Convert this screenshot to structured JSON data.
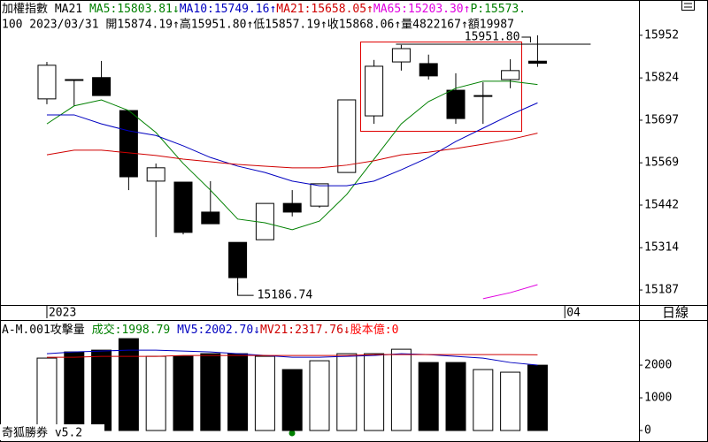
{
  "header": {
    "line1_prefix": "加權指數 MA21 ",
    "line1_suffix": "P:15573.",
    "line2": "100 2023/03/31 開15874.19↑高15951.80↑低15857.19↑收15868.06↑量4822167↑額19987"
  },
  "timeframe": "日線",
  "footer": "奇狐勝券 v5.2",
  "chart_data": [
    {
      "type": "candlestick",
      "x": [
        0,
        1,
        2,
        3,
        4,
        5,
        6,
        7,
        8,
        9,
        10,
        11,
        12,
        13,
        14,
        15,
        16,
        17,
        18
      ],
      "open": [
        15761,
        15819,
        15825,
        15726,
        15514,
        15511,
        15421,
        15330,
        15338,
        15447,
        15439,
        15540,
        15710,
        15872,
        15867,
        15787,
        15769,
        15819,
        15874.19
      ],
      "high": [
        15872,
        15819,
        15875,
        15726,
        15567,
        15511,
        15514,
        15330,
        15447,
        15487,
        15506,
        15758,
        15878,
        15923,
        15894,
        15838,
        15811,
        15880,
        15951.8
      ],
      "low": [
        15745,
        15740,
        15771,
        15487,
        15346,
        15354,
        15386,
        15186.74,
        15338,
        15408,
        15434,
        15540,
        15686,
        15846,
        15819,
        15686,
        15686,
        15793,
        15857.19
      ],
      "close": [
        15862,
        15817,
        15771,
        15527,
        15554,
        15360,
        15386,
        15224,
        15447,
        15421,
        15506,
        15758,
        15859,
        15912,
        15830,
        15702,
        15771,
        15846,
        15868.06
      ],
      "up_color": "#ffffff",
      "down_color": "#000000",
      "series": [
        {
          "label": "MA5:15803.81↓",
          "color": "#008000",
          "values": [
            15686,
            15740,
            15758,
            15726,
            15660,
            15567,
            15487,
            15400,
            15389,
            15368,
            15394,
            15474,
            15580,
            15686,
            15753,
            15793,
            15814,
            15814,
            15804
          ]
        },
        {
          "label": "MA10:15749.16↑",
          "color": "#0000c0",
          "values": [
            15713,
            15713,
            15686,
            15665,
            15651,
            15620,
            15585,
            15559,
            15540,
            15514,
            15500,
            15500,
            15514,
            15548,
            15585,
            15633,
            15673,
            15713,
            15749
          ]
        },
        {
          "label": "MA21:15658.05↑",
          "color": "#d00000",
          "values": [
            15593,
            15607,
            15607,
            15599,
            15591,
            15580,
            15572,
            15564,
            15559,
            15554,
            15554,
            15562,
            15575,
            15593,
            15601,
            15612,
            15625,
            15639,
            15658
          ]
        },
        {
          "label": "MA65:15203.30↑",
          "color": "#e000e0",
          "values": [
            null,
            null,
            null,
            null,
            null,
            null,
            null,
            null,
            null,
            null,
            null,
            null,
            null,
            null,
            null,
            null,
            15161,
            15179,
            15203
          ]
        }
      ],
      "annotations": [
        {
          "label": "15951.80",
          "value": 15951.8,
          "x": 18
        },
        {
          "label": "15186.74",
          "value": 15186.74,
          "x": 7
        }
      ],
      "xlim": [
        -1.72,
        21.72
      ],
      "ylim": [
        15142,
        16058
      ],
      "yticks": [
        15952,
        15824,
        15697,
        15569,
        15442,
        15314,
        15187
      ],
      "xticks": [
        {
          "value": 0,
          "label": "2023"
        },
        {
          "value": 19,
          "label": "04"
        }
      ]
    },
    {
      "type": "bar",
      "title_prefix": "A-M.001攻擊量 ",
      "bar_label": "成交:1998.79 ",
      "bar_label_color": "#008000",
      "extra_label": "股本億:0",
      "extra_label_color": "#ff0000",
      "x": [
        0,
        1,
        2,
        3,
        4,
        5,
        6,
        7,
        8,
        9,
        10,
        11,
        12,
        13,
        14,
        15,
        16,
        17,
        18
      ],
      "values": [
        2216,
        2405,
        2459,
        2811,
        2270,
        2270,
        2351,
        2351,
        2270,
        1865,
        2135,
        2351,
        2351,
        2486,
        2081,
        2081,
        1865,
        1784,
        1998.79
      ],
      "series": [
        {
          "label": "MV5:2002.70↓",
          "color": "#0000c0",
          "values": [
            2351,
            2405,
            2432,
            2459,
            2459,
            2432,
            2405,
            2351,
            2297,
            2243,
            2243,
            2270,
            2297,
            2351,
            2324,
            2270,
            2216,
            2081,
            2002.7
          ]
        },
        {
          "label": "MV21:2317.76↓",
          "color": "#d00000",
          "values": [
            2243,
            2243,
            2270,
            2270,
            2270,
            2297,
            2297,
            2297,
            2297,
            2297,
            2297,
            2297,
            2324,
            2324,
            2324,
            2324,
            2324,
            2324,
            2317.76
          ]
        }
      ],
      "xlim": [
        -1.72,
        21.72
      ],
      "ylim": [
        0,
        3300
      ],
      "yticks": [
        2000,
        1000,
        0
      ]
    }
  ]
}
